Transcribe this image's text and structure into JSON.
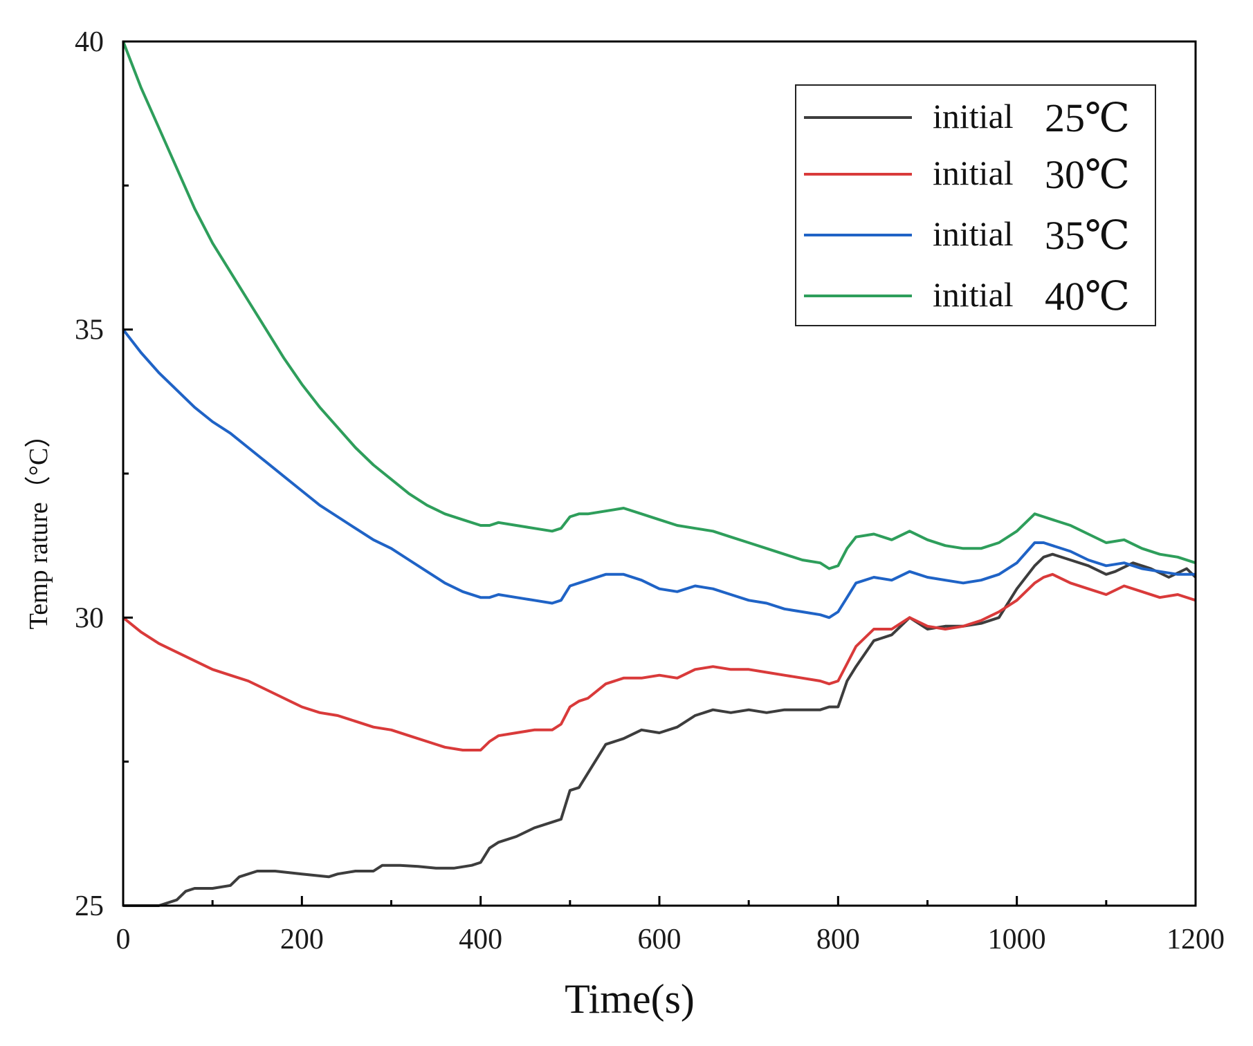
{
  "chart_data": {
    "type": "line",
    "title": "",
    "xlabel": "Time(s)",
    "ylabel": "Temp rature（°C）",
    "xlim": [
      0,
      1200
    ],
    "ylim": [
      25,
      40
    ],
    "x_ticks": [
      0,
      200,
      400,
      600,
      800,
      1000,
      1200
    ],
    "y_ticks": [
      25,
      30,
      35,
      40
    ],
    "x_minor_ticks": [
      100,
      300,
      500,
      700,
      900,
      1100
    ],
    "y_minor_ticks": [
      27.5,
      32.5,
      37.5
    ],
    "grid": false,
    "legend_position": "top-right",
    "series": [
      {
        "name": "initial",
        "temp_label": "25℃",
        "color": "#3d3d3d",
        "x": [
          0,
          20,
          40,
          60,
          70,
          80,
          100,
          120,
          130,
          150,
          170,
          200,
          230,
          240,
          260,
          280,
          290,
          310,
          330,
          350,
          370,
          390,
          400,
          410,
          420,
          440,
          460,
          480,
          490,
          500,
          510,
          520,
          540,
          560,
          580,
          600,
          620,
          640,
          660,
          680,
          700,
          720,
          740,
          760,
          780,
          790,
          800,
          810,
          820,
          840,
          860,
          880,
          900,
          920,
          940,
          960,
          980,
          1000,
          1020,
          1030,
          1040,
          1060,
          1080,
          1100,
          1110,
          1130,
          1150,
          1170,
          1190,
          1200
        ],
        "values": [
          25.0,
          25.0,
          25.0,
          25.1,
          25.25,
          25.3,
          25.3,
          25.35,
          25.5,
          25.6,
          25.6,
          25.55,
          25.5,
          25.55,
          25.6,
          25.6,
          25.7,
          25.7,
          25.68,
          25.65,
          25.65,
          25.7,
          25.75,
          26.0,
          26.1,
          26.2,
          26.35,
          26.45,
          26.5,
          27.0,
          27.05,
          27.3,
          27.8,
          27.9,
          28.05,
          28.0,
          28.1,
          28.3,
          28.4,
          28.35,
          28.4,
          28.35,
          28.4,
          28.4,
          28.4,
          28.45,
          28.45,
          28.9,
          29.15,
          29.6,
          29.7,
          30.0,
          29.8,
          29.85,
          29.85,
          29.9,
          30.0,
          30.5,
          30.9,
          31.05,
          31.1,
          31.0,
          30.9,
          30.75,
          30.8,
          30.95,
          30.85,
          30.7,
          30.85,
          30.7
        ]
      },
      {
        "name": "initial",
        "temp_label": "30℃",
        "color": "#d93a3a",
        "x": [
          0,
          20,
          40,
          60,
          80,
          100,
          120,
          140,
          160,
          180,
          200,
          220,
          240,
          260,
          280,
          300,
          320,
          340,
          360,
          380,
          400,
          410,
          420,
          440,
          460,
          480,
          490,
          500,
          510,
          520,
          540,
          560,
          580,
          600,
          620,
          640,
          660,
          680,
          700,
          720,
          740,
          760,
          780,
          790,
          800,
          810,
          820,
          840,
          860,
          880,
          900,
          920,
          940,
          960,
          980,
          1000,
          1020,
          1030,
          1040,
          1060,
          1080,
          1100,
          1120,
          1140,
          1160,
          1180,
          1200
        ],
        "values": [
          30.0,
          29.75,
          29.55,
          29.4,
          29.25,
          29.1,
          29.0,
          28.9,
          28.75,
          28.6,
          28.45,
          28.35,
          28.3,
          28.2,
          28.1,
          28.05,
          27.95,
          27.85,
          27.75,
          27.7,
          27.7,
          27.85,
          27.95,
          28.0,
          28.05,
          28.05,
          28.15,
          28.45,
          28.55,
          28.6,
          28.85,
          28.95,
          28.95,
          29.0,
          28.95,
          29.1,
          29.15,
          29.1,
          29.1,
          29.05,
          29.0,
          28.95,
          28.9,
          28.85,
          28.9,
          29.2,
          29.5,
          29.8,
          29.8,
          30.0,
          29.85,
          29.8,
          29.85,
          29.95,
          30.1,
          30.3,
          30.6,
          30.7,
          30.75,
          30.6,
          30.5,
          30.4,
          30.55,
          30.45,
          30.35,
          30.4,
          30.3
        ]
      },
      {
        "name": "initial",
        "temp_label": "35℃",
        "color": "#1f63c6",
        "x": [
          0,
          20,
          40,
          60,
          80,
          100,
          120,
          140,
          160,
          180,
          200,
          220,
          240,
          260,
          280,
          300,
          320,
          340,
          360,
          380,
          400,
          410,
          420,
          440,
          460,
          480,
          490,
          500,
          510,
          520,
          540,
          560,
          580,
          600,
          620,
          640,
          660,
          680,
          700,
          720,
          740,
          760,
          780,
          790,
          800,
          810,
          820,
          840,
          860,
          880,
          900,
          920,
          940,
          960,
          980,
          1000,
          1020,
          1030,
          1040,
          1060,
          1080,
          1100,
          1120,
          1140,
          1160,
          1180,
          1200
        ],
        "values": [
          35.0,
          34.6,
          34.25,
          33.95,
          33.65,
          33.4,
          33.2,
          32.95,
          32.7,
          32.45,
          32.2,
          31.95,
          31.75,
          31.55,
          31.35,
          31.2,
          31.0,
          30.8,
          30.6,
          30.45,
          30.35,
          30.35,
          30.4,
          30.35,
          30.3,
          30.25,
          30.3,
          30.55,
          30.6,
          30.65,
          30.75,
          30.75,
          30.65,
          30.5,
          30.45,
          30.55,
          30.5,
          30.4,
          30.3,
          30.25,
          30.15,
          30.1,
          30.05,
          30.0,
          30.1,
          30.35,
          30.6,
          30.7,
          30.65,
          30.8,
          30.7,
          30.65,
          30.6,
          30.65,
          30.75,
          30.95,
          31.3,
          31.3,
          31.25,
          31.15,
          31.0,
          30.9,
          30.95,
          30.85,
          30.8,
          30.75,
          30.75
        ]
      },
      {
        "name": "initial",
        "temp_label": "40℃",
        "color": "#2e9e5b",
        "x": [
          0,
          20,
          40,
          60,
          80,
          100,
          120,
          140,
          160,
          180,
          200,
          220,
          240,
          260,
          280,
          300,
          320,
          340,
          360,
          380,
          400,
          410,
          420,
          440,
          460,
          480,
          490,
          500,
          510,
          520,
          540,
          560,
          580,
          600,
          620,
          640,
          660,
          680,
          700,
          720,
          740,
          760,
          780,
          790,
          800,
          810,
          820,
          840,
          860,
          880,
          900,
          920,
          940,
          960,
          980,
          1000,
          1020,
          1030,
          1040,
          1060,
          1080,
          1100,
          1120,
          1140,
          1160,
          1180,
          1200
        ],
        "values": [
          40.0,
          39.2,
          38.5,
          37.8,
          37.1,
          36.5,
          36.0,
          35.5,
          35.0,
          34.5,
          34.05,
          33.65,
          33.3,
          32.95,
          32.65,
          32.4,
          32.15,
          31.95,
          31.8,
          31.7,
          31.6,
          31.6,
          31.65,
          31.6,
          31.55,
          31.5,
          31.55,
          31.75,
          31.8,
          31.8,
          31.85,
          31.9,
          31.8,
          31.7,
          31.6,
          31.55,
          31.5,
          31.4,
          31.3,
          31.2,
          31.1,
          31.0,
          30.95,
          30.85,
          30.9,
          31.2,
          31.4,
          31.45,
          31.35,
          31.5,
          31.35,
          31.25,
          31.2,
          31.2,
          31.3,
          31.5,
          31.8,
          31.75,
          31.7,
          31.6,
          31.45,
          31.3,
          31.35,
          31.2,
          31.1,
          31.05,
          30.95
        ]
      }
    ]
  }
}
